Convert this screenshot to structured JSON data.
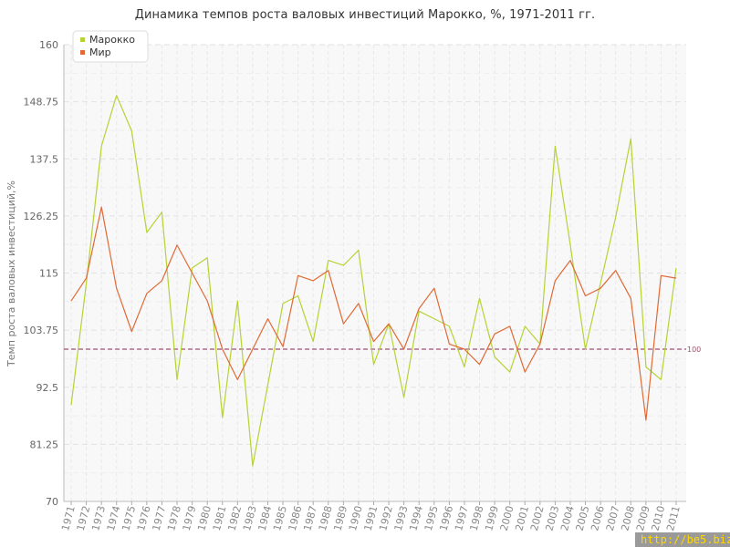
{
  "chart_data": {
    "type": "line",
    "title": "Динамика темпов роста валовых инвестиций Марокко, %, 1971-2011 гг.",
    "ylabel": "Темп роста валовых инвестиций,%",
    "xlabel": "",
    "ylim": [
      70,
      160
    ],
    "yticks": [
      "70",
      "81.25",
      "92.5",
      "103.75",
      "115",
      "126.25",
      "137.5",
      "148.75",
      "160"
    ],
    "ytick_values": [
      70,
      81.25,
      92.5,
      103.75,
      115,
      126.25,
      137.5,
      148.75,
      160
    ],
    "grid": true,
    "legend_position": "top-left",
    "reference_line": {
      "value": 100,
      "label": "100",
      "color": "#a05070"
    },
    "x": [
      "1971",
      "1972",
      "1973",
      "1974",
      "1975",
      "1976",
      "1977",
      "1978",
      "1979",
      "1980",
      "1981",
      "1982",
      "1983",
      "1984",
      "1985",
      "1986",
      "1987",
      "1988",
      "1989",
      "1990",
      "1991",
      "1992",
      "1993",
      "1994",
      "1995",
      "1996",
      "1997",
      "1998",
      "1999",
      "2000",
      "2001",
      "2002",
      "2003",
      "2004",
      "2005",
      "2006",
      "2007",
      "2008",
      "2009",
      "2010",
      "2011"
    ],
    "series": [
      {
        "name": "Марокко",
        "color": "#b5d334",
        "values": [
          89,
          113,
          140,
          150,
          143,
          123,
          127,
          94,
          116,
          118,
          86.5,
          109.5,
          77,
          93,
          109,
          110.5,
          101.5,
          117.5,
          116.5,
          119.5,
          97,
          105,
          90.5,
          107.5,
          106,
          104.5,
          96.5,
          110,
          98.5,
          95.5,
          104.5,
          101,
          140,
          120.5,
          100,
          113,
          126,
          141.5,
          96.5,
          94,
          116
        ]
      },
      {
        "name": "Мир",
        "color": "#e06a35",
        "values": [
          109.5,
          114,
          128,
          112,
          103.5,
          111,
          113.5,
          120.5,
          115,
          109.5,
          100,
          94,
          100,
          106,
          100.5,
          114.5,
          113.5,
          115.5,
          105,
          109,
          101.5,
          105,
          100,
          108,
          112,
          101,
          100,
          97,
          103,
          104.5,
          95.5,
          101,
          113.5,
          117.5,
          110.5,
          112,
          115.5,
          110,
          86,
          114.5,
          114
        ]
      }
    ]
  },
  "watermark": "http://be5.biz/"
}
